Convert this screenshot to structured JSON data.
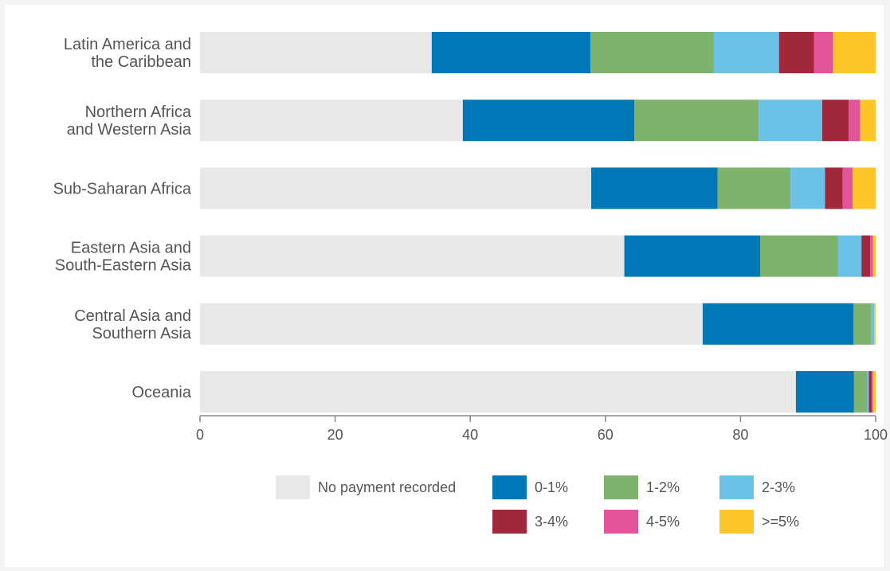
{
  "chart_data": {
    "type": "bar",
    "orientation": "horizontal",
    "stacked": true,
    "categories": [
      [
        "Latin America and",
        "the Caribbean"
      ],
      [
        "Northern Africa",
        "and Western Asia"
      ],
      [
        "Sub-Saharan Africa"
      ],
      [
        "Eastern Asia and",
        "South-Eastern Asia"
      ],
      [
        "Central Asia and",
        "Southern Asia"
      ],
      [
        "Oceania"
      ]
    ],
    "series": [
      {
        "name": "No payment recorded",
        "color": "#e8e8e8",
        "values": [
          34.3,
          38.9,
          57.9,
          62.8,
          74.4,
          88.2
        ]
      },
      {
        "name": "0-1%",
        "color": "#0077b6",
        "values": [
          23.5,
          25.4,
          18.7,
          20.1,
          22.3,
          8.6
        ]
      },
      {
        "name": "1-2%",
        "color": "#7eb26d",
        "values": [
          18.2,
          18.4,
          10.8,
          11.5,
          2.6,
          1.9
        ]
      },
      {
        "name": "2-3%",
        "color": "#6cc1e6",
        "values": [
          9.7,
          9.4,
          5.1,
          3.5,
          0.5,
          0.3
        ]
      },
      {
        "name": "3-4%",
        "color": "#a0283a",
        "values": [
          5.2,
          3.9,
          2.6,
          1.3,
          0,
          0.4
        ]
      },
      {
        "name": "4-5%",
        "color": "#e2559b",
        "values": [
          2.8,
          1.7,
          1.5,
          0.4,
          0,
          0.2
        ]
      },
      {
        "name": ">=5%",
        "color": "#ffc629",
        "values": [
          6.3,
          2.3,
          3.4,
          0.4,
          0.2,
          0.4
        ]
      }
    ],
    "xlim": [
      0,
      100
    ],
    "xticks": [
      0,
      20,
      40,
      60,
      80,
      100
    ],
    "title": "",
    "xlabel": "",
    "ylabel": "",
    "grid": false,
    "legend_position": "bottom"
  }
}
